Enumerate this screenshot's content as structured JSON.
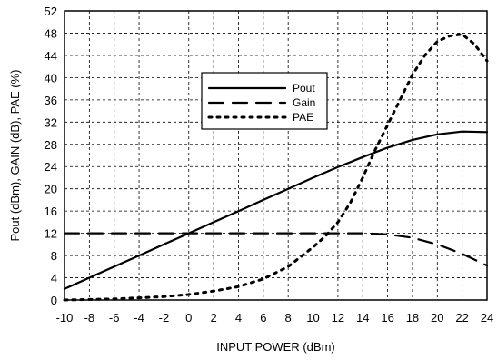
{
  "chart_data": {
    "type": "line",
    "title": "",
    "xlabel": "INPUT POWER (dBm)",
    "ylabel": "Pout (dBm), GAIN (dB), PAE (%)",
    "xlim": [
      -10,
      24
    ],
    "ylim": [
      0,
      52
    ],
    "xticks": [
      -10,
      -8,
      -6,
      -4,
      -2,
      0,
      2,
      4,
      6,
      8,
      10,
      12,
      14,
      16,
      18,
      20,
      22,
      24
    ],
    "yticks": [
      0,
      4,
      8,
      12,
      16,
      20,
      24,
      28,
      32,
      36,
      40,
      44,
      48,
      52
    ],
    "grid": true,
    "legend_position": "center",
    "series": [
      {
        "name": "Pout",
        "style": "solid",
        "color": "#000000",
        "x": [
          -10,
          -8,
          -6,
          -4,
          -2,
          0,
          2,
          4,
          6,
          8,
          10,
          12,
          14,
          16,
          18,
          20,
          22,
          24
        ],
        "values": [
          2,
          4,
          6,
          8,
          10,
          12,
          14,
          16,
          18,
          20,
          22,
          23.9,
          25.7,
          27.4,
          28.8,
          29.8,
          30.3,
          30.2
        ]
      },
      {
        "name": "Gain",
        "style": "dash",
        "color": "#000000",
        "x": [
          -10,
          -8,
          -6,
          -4,
          -2,
          0,
          2,
          4,
          6,
          8,
          10,
          12,
          14,
          16,
          18,
          20,
          22,
          24
        ],
        "values": [
          12,
          12,
          12,
          12,
          12,
          12,
          12,
          12,
          12,
          12,
          12,
          12,
          12,
          11.8,
          11.2,
          10,
          8.3,
          6.2
        ]
      },
      {
        "name": "PAE",
        "style": "dot",
        "color": "#000000",
        "x": [
          -10,
          -8,
          -6,
          -4,
          -2,
          0,
          2,
          4,
          6,
          8,
          10,
          11,
          12,
          13,
          14,
          15,
          16,
          17,
          18,
          19,
          20,
          21,
          22,
          23,
          24
        ],
        "values": [
          0,
          0.1,
          0.2,
          0.4,
          0.6,
          1,
          1.6,
          2.4,
          3.8,
          6,
          9.5,
          11.5,
          14,
          17.5,
          22,
          27,
          31.5,
          36,
          40.5,
          44,
          46.5,
          47.5,
          47.8,
          46,
          43
        ]
      }
    ]
  }
}
